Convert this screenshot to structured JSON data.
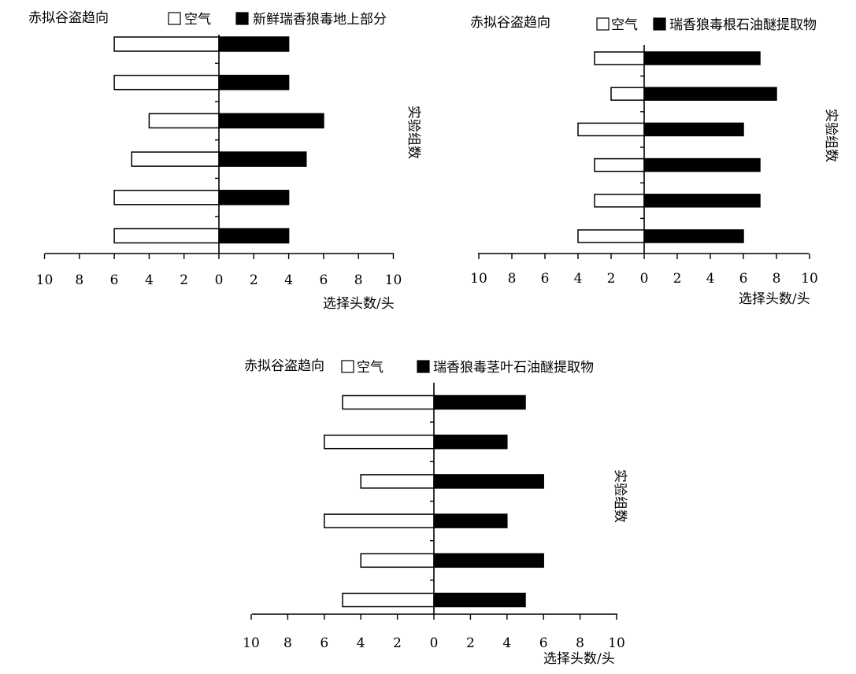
{
  "chart_data": [
    {
      "type": "bar",
      "orientation": "horizontal-diverging",
      "title": "赤拟谷盗趋向",
      "xlabel": "选择头数/头",
      "ylabel": "实验组数",
      "xlim": [
        -10,
        10
      ],
      "tick_labels": [
        "10",
        "8",
        "6",
        "4",
        "2",
        "0",
        "2",
        "4",
        "6",
        "8",
        "10"
      ],
      "series": [
        {
          "name": "空气",
          "color": "#ffffff",
          "values": [
            6,
            6,
            4,
            5,
            6,
            6
          ]
        },
        {
          "name": "新鲜瑞香狼毒地上部分",
          "color": "#000000",
          "values": [
            4,
            4,
            6,
            5,
            4,
            4
          ]
        }
      ]
    },
    {
      "type": "bar",
      "orientation": "horizontal-diverging",
      "title": "赤拟谷盗趋向",
      "xlabel": "选择头数/头",
      "ylabel": "实验组数",
      "xlim": [
        -10,
        10
      ],
      "tick_labels": [
        "10",
        "8",
        "6",
        "4",
        "2",
        "0",
        "2",
        "4",
        "6",
        "8",
        "10"
      ],
      "series": [
        {
          "name": "空气",
          "color": "#ffffff",
          "values": [
            3,
            2,
            4,
            3,
            3,
            4
          ]
        },
        {
          "name": "瑞香狼毒根石油醚提取物",
          "color": "#000000",
          "values": [
            7,
            8,
            6,
            7,
            7,
            6
          ]
        }
      ]
    },
    {
      "type": "bar",
      "orientation": "horizontal-diverging",
      "title": "赤拟谷盗趋向",
      "xlabel": "选择头数/头",
      "ylabel": "实验组数",
      "xlim": [
        -10,
        10
      ],
      "tick_labels": [
        "10",
        "8",
        "6",
        "4",
        "2",
        "0",
        "2",
        "4",
        "6",
        "8",
        "10"
      ],
      "series": [
        {
          "name": "空气",
          "color": "#ffffff",
          "values": [
            5,
            6,
            4,
            6,
            4,
            5
          ]
        },
        {
          "name": "瑞香狼毒茎叶石油醚提取物",
          "color": "#000000",
          "values": [
            5,
            4,
            6,
            4,
            6,
            5
          ]
        }
      ]
    }
  ]
}
